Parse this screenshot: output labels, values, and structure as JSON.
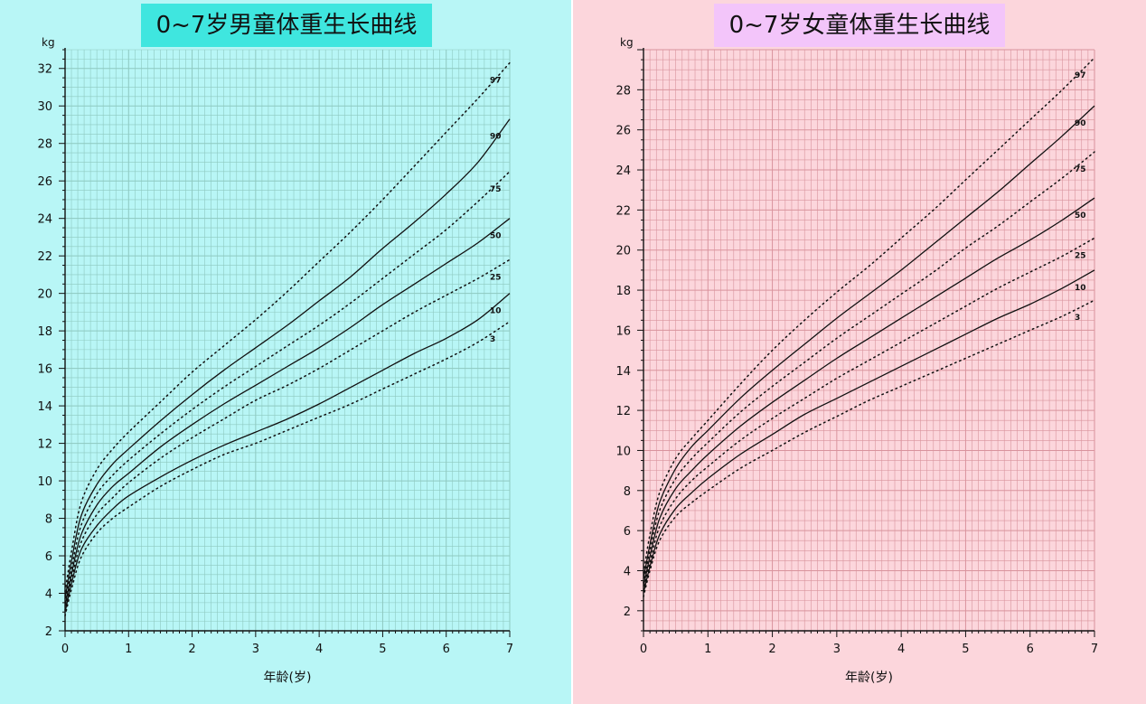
{
  "chart_data": [
    {
      "type": "line",
      "title": "0~7岁男童体重生长曲线",
      "xlabel": "年龄(岁)",
      "ylabel": "kg",
      "xlim": [
        0,
        7
      ],
      "ylim": [
        2,
        33
      ],
      "x_ticks": [
        0,
        1,
        2,
        3,
        4,
        5,
        6,
        7
      ],
      "y_ticks": [
        2,
        4,
        6,
        8,
        10,
        12,
        14,
        16,
        18,
        20,
        22,
        24,
        26,
        28,
        30,
        32
      ],
      "grid": true,
      "colors": {
        "panel_bg": "#b8f6f6",
        "title_bg": "#3fe6df",
        "grid": "#8ec9c0",
        "line": "#111111"
      },
      "x": [
        0,
        0.1,
        0.25,
        0.5,
        0.75,
        1,
        1.5,
        2,
        2.5,
        3,
        3.5,
        4,
        4.5,
        5,
        5.5,
        6,
        6.5,
        7
      ],
      "series": [
        {
          "name": "97",
          "style": "dotted",
          "values": [
            4.1,
            6.2,
            8.8,
            10.6,
            11.7,
            12.6,
            14.2,
            15.8,
            17.2,
            18.6,
            20.1,
            21.7,
            23.3,
            25.0,
            26.8,
            28.6,
            30.4,
            32.3
          ]
        },
        {
          "name": "90",
          "style": "solid",
          "values": [
            3.7,
            5.7,
            8.1,
            9.8,
            10.9,
            11.7,
            13.2,
            14.6,
            15.9,
            17.1,
            18.3,
            19.6,
            20.9,
            22.4,
            23.8,
            25.3,
            27.0,
            29.3
          ]
        },
        {
          "name": "75",
          "style": "dotted",
          "values": [
            3.5,
            5.3,
            7.6,
            9.3,
            10.3,
            11.1,
            12.5,
            13.8,
            15.0,
            16.1,
            17.2,
            18.3,
            19.5,
            20.8,
            22.1,
            23.4,
            24.9,
            26.5
          ]
        },
        {
          "name": "50",
          "style": "solid",
          "values": [
            3.3,
            5.0,
            7.1,
            8.7,
            9.7,
            10.4,
            11.8,
            13.0,
            14.1,
            15.1,
            16.1,
            17.1,
            18.2,
            19.4,
            20.5,
            21.6,
            22.7,
            24.0
          ]
        },
        {
          "name": "25",
          "style": "dotted",
          "values": [
            3.1,
            4.7,
            6.7,
            8.2,
            9.1,
            9.9,
            11.2,
            12.3,
            13.3,
            14.3,
            15.1,
            16.0,
            17.0,
            18.0,
            19.0,
            19.9,
            20.8,
            21.8
          ]
        },
        {
          "name": "10",
          "style": "solid",
          "values": [
            3.0,
            4.5,
            6.3,
            7.6,
            8.5,
            9.2,
            10.2,
            11.1,
            11.9,
            12.6,
            13.3,
            14.1,
            15.0,
            15.9,
            16.8,
            17.6,
            18.6,
            20.0
          ]
        },
        {
          "name": "3",
          "style": "dotted",
          "values": [
            2.8,
            4.2,
            5.9,
            7.2,
            8.0,
            8.6,
            9.7,
            10.6,
            11.4,
            12.0,
            12.7,
            13.4,
            14.1,
            14.9,
            15.7,
            16.5,
            17.4,
            18.5
          ]
        }
      ]
    },
    {
      "type": "line",
      "title": "0~7岁女童体重生长曲线",
      "xlabel": "年龄(岁)",
      "ylabel": "kg",
      "xlim": [
        0,
        7
      ],
      "ylim": [
        1,
        30
      ],
      "x_ticks": [
        0,
        1,
        2,
        3,
        4,
        5,
        6,
        7
      ],
      "y_ticks": [
        2,
        4,
        6,
        8,
        10,
        12,
        14,
        16,
        18,
        20,
        22,
        24,
        26,
        28
      ],
      "grid": true,
      "colors": {
        "panel_bg": "#fcd6dc",
        "title_bg": "#f3c5fa",
        "grid": "#d9939d",
        "line": "#111111"
      },
      "x": [
        0,
        0.1,
        0.25,
        0.5,
        0.75,
        1,
        1.5,
        2,
        2.5,
        3,
        3.5,
        4,
        4.5,
        5,
        5.5,
        6,
        6.5,
        7
      ],
      "series": [
        {
          "name": "97",
          "style": "dotted",
          "values": [
            3.9,
            5.8,
            7.9,
            9.6,
            10.6,
            11.5,
            13.3,
            15.0,
            16.5,
            17.9,
            19.2,
            20.6,
            22.0,
            23.5,
            25.0,
            26.5,
            28.0,
            29.6
          ]
        },
        {
          "name": "90",
          "style": "solid",
          "values": [
            3.6,
            5.3,
            7.4,
            9.1,
            10.2,
            11.0,
            12.6,
            14.0,
            15.3,
            16.6,
            17.8,
            19.0,
            20.3,
            21.6,
            22.9,
            24.3,
            25.7,
            27.2
          ]
        },
        {
          "name": "75",
          "style": "dotted",
          "values": [
            3.4,
            5.0,
            7.0,
            8.6,
            9.6,
            10.4,
            11.9,
            13.2,
            14.4,
            15.6,
            16.7,
            17.8,
            18.9,
            20.1,
            21.2,
            22.4,
            23.6,
            24.9
          ]
        },
        {
          "name": "50",
          "style": "solid",
          "values": [
            3.2,
            4.7,
            6.6,
            8.1,
            9.0,
            9.8,
            11.2,
            12.4,
            13.5,
            14.6,
            15.6,
            16.6,
            17.6,
            18.6,
            19.6,
            20.5,
            21.5,
            22.6
          ]
        },
        {
          "name": "25",
          "style": "dotted",
          "values": [
            3.0,
            4.4,
            6.2,
            7.6,
            8.5,
            9.2,
            10.5,
            11.6,
            12.6,
            13.6,
            14.5,
            15.4,
            16.3,
            17.2,
            18.1,
            18.9,
            19.7,
            20.6
          ]
        },
        {
          "name": "10",
          "style": "solid",
          "values": [
            2.9,
            4.2,
            5.8,
            7.1,
            7.9,
            8.6,
            9.8,
            10.8,
            11.8,
            12.6,
            13.4,
            14.2,
            15.0,
            15.8,
            16.6,
            17.3,
            18.1,
            19.0
          ]
        },
        {
          "name": "3",
          "style": "dotted",
          "values": [
            2.7,
            4.0,
            5.5,
            6.7,
            7.4,
            8.0,
            9.1,
            10.0,
            10.9,
            11.7,
            12.5,
            13.2,
            13.9,
            14.6,
            15.3,
            16.0,
            16.7,
            17.5
          ]
        }
      ]
    }
  ]
}
